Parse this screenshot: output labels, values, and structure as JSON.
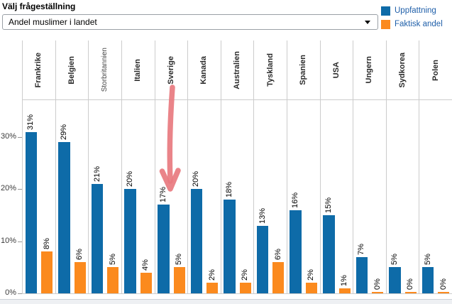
{
  "header": {
    "label": "Välj frågeställning",
    "dropdown": {
      "value": "Andel muslimer i landet"
    }
  },
  "chart_data": {
    "type": "bar",
    "title": "",
    "categories": [
      "Frankrike",
      "Belgien",
      "Storbritannien",
      "Italien",
      "Sverige",
      "Kanada",
      "Australien",
      "Tyskland",
      "Spanien",
      "USA",
      "Ungern",
      "Sydkorea",
      "Polen"
    ],
    "series": [
      {
        "name": "Uppfattning",
        "color": "#0E6BA8",
        "values": [
          31,
          29,
          21,
          20,
          17,
          20,
          18,
          13,
          16,
          15,
          7,
          5,
          5
        ]
      },
      {
        "name": "Faktisk andel",
        "color": "#FB8A1E",
        "values": [
          8,
          6,
          5,
          4,
          5,
          2,
          2,
          6,
          2,
          1,
          0,
          0,
          0
        ]
      }
    ],
    "value_label_suffix": "%",
    "yticks": [
      "0%",
      "10%",
      "20%",
      "30%"
    ],
    "ytick_values": [
      0,
      10,
      20,
      30
    ],
    "ylim": [
      0,
      37
    ],
    "grid": "vertical-only",
    "legend_position": "top-right"
  },
  "annotation": {
    "type": "hand-drawn-arrow",
    "color": "#E8797F",
    "target_category": "Sverige"
  }
}
